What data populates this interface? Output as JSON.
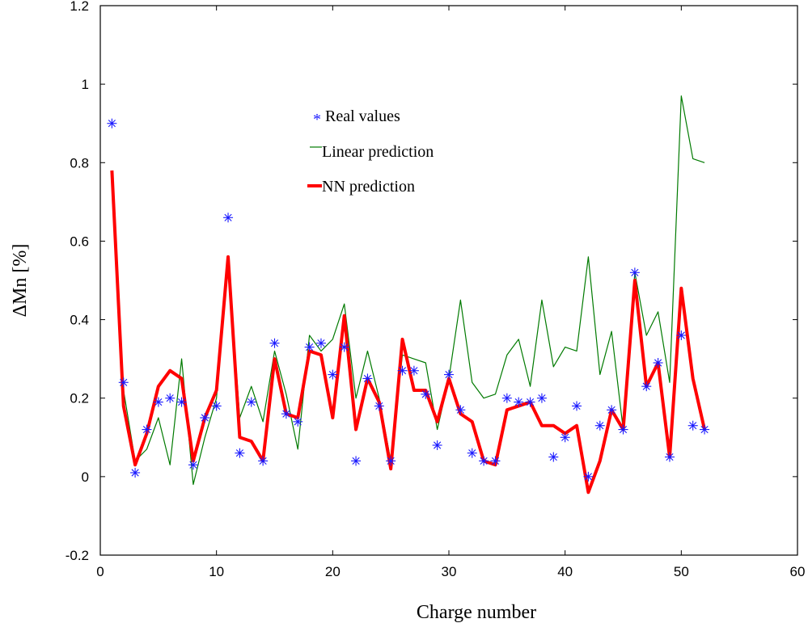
{
  "chart_data": {
    "type": "line",
    "xlabel": "Charge number",
    "ylabel": "ΔMn [%]",
    "xlim": [
      0,
      60
    ],
    "ylim": [
      -0.2,
      1.2
    ],
    "xticks": [
      0,
      10,
      20,
      30,
      40,
      50,
      60
    ],
    "yticks": [
      -0.2,
      0,
      0.2,
      0.4,
      0.6,
      0.8,
      1,
      1.2
    ],
    "xtick_labels": [
      "0",
      "10",
      "20",
      "30",
      "40",
      "50",
      "60"
    ],
    "ytick_labels": [
      "-0.2",
      "0",
      "0.2",
      "0.4",
      "0.6",
      "0.8",
      "1",
      "1.2"
    ],
    "grid": false,
    "legend_placement": "upper-center",
    "x": [
      1,
      2,
      3,
      4,
      5,
      6,
      7,
      8,
      9,
      10,
      11,
      12,
      13,
      14,
      15,
      16,
      17,
      18,
      19,
      20,
      21,
      22,
      23,
      24,
      25,
      26,
      27,
      28,
      29,
      30,
      31,
      32,
      33,
      34,
      35,
      36,
      37,
      38,
      39,
      40,
      41,
      42,
      43,
      44,
      45,
      46,
      47,
      48,
      49,
      50,
      51,
      52
    ],
    "series": [
      {
        "name": "Real values",
        "kind": "scatter",
        "marker": "*",
        "color": "#1a1aff",
        "values": [
          0.9,
          0.24,
          0.01,
          0.12,
          0.19,
          0.2,
          0.19,
          0.03,
          0.15,
          0.18,
          0.66,
          0.06,
          0.19,
          0.04,
          0.34,
          0.16,
          0.14,
          0.33,
          0.34,
          0.26,
          0.33,
          0.04,
          0.25,
          0.18,
          0.04,
          0.27,
          0.27,
          0.21,
          0.08,
          0.26,
          0.17,
          0.06,
          0.04,
          0.04,
          0.2,
          0.19,
          0.19,
          0.2,
          0.05,
          0.1,
          0.18,
          0.0,
          0.13,
          0.17,
          0.12,
          0.52,
          0.23,
          0.29,
          0.05,
          0.36,
          0.13,
          0.12
        ]
      },
      {
        "name": "Linear prediction",
        "kind": "line",
        "color": "#007a00",
        "values": [
          0.78,
          0.22,
          0.04,
          0.07,
          0.15,
          0.03,
          0.3,
          -0.02,
          0.1,
          0.2,
          0.56,
          0.15,
          0.23,
          0.14,
          0.32,
          0.21,
          0.07,
          0.36,
          0.32,
          0.35,
          0.44,
          0.2,
          0.32,
          0.2,
          0.04,
          0.31,
          0.3,
          0.29,
          0.12,
          0.25,
          0.45,
          0.24,
          0.2,
          0.21,
          0.31,
          0.35,
          0.23,
          0.45,
          0.28,
          0.33,
          0.32,
          0.56,
          0.26,
          0.37,
          0.12,
          0.52,
          0.36,
          0.42,
          0.24,
          0.97,
          0.81,
          0.8
        ]
      },
      {
        "name": "NN prediction",
        "kind": "line",
        "color": "#ff0000",
        "values": [
          0.78,
          0.18,
          0.03,
          0.11,
          0.23,
          0.27,
          0.25,
          0.04,
          0.15,
          0.22,
          0.56,
          0.1,
          0.09,
          0.04,
          0.3,
          0.16,
          0.15,
          0.32,
          0.31,
          0.15,
          0.41,
          0.12,
          0.25,
          0.19,
          0.02,
          0.35,
          0.22,
          0.22,
          0.14,
          0.25,
          0.16,
          0.14,
          0.04,
          0.03,
          0.17,
          0.18,
          0.19,
          0.13,
          0.13,
          0.11,
          0.13,
          -0.04,
          0.04,
          0.17,
          0.12,
          0.5,
          0.23,
          0.29,
          0.05,
          0.48,
          0.25,
          0.12
        ]
      }
    ]
  }
}
